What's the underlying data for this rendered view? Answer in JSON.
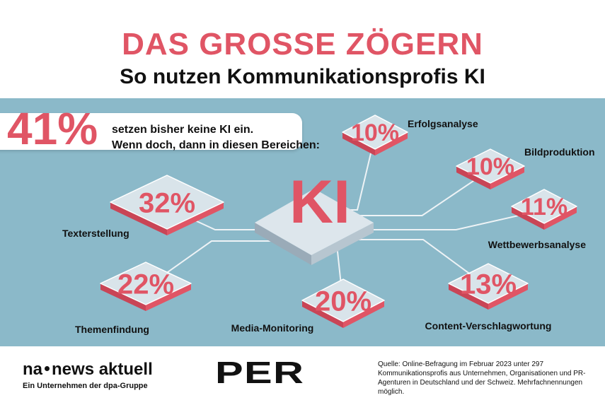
{
  "title": "DAS GROSSE ZÖGERN",
  "subtitle": "So nutzen Kommunikationsprofis KI",
  "headline": {
    "value": "41%",
    "line1": "setzen bisher keine KI ein.",
    "line2": "Wenn doch, dann in diesen Bereichen:"
  },
  "center_label": "KI",
  "colors": {
    "accent": "#e05565",
    "panel": "#8bb9c9",
    "tile": "#d9e4ea"
  },
  "chart_data": {
    "type": "infographic",
    "title": "DAS GROSSE ZÖGERN",
    "subtitle": "So nutzen Kommunikationsprofis KI",
    "categories": [
      "Erfolgsanalyse",
      "Bildproduktion",
      "Wettbewerbsanalyse",
      "Content-Verschlagwortung",
      "Media-Monitoring",
      "Themenfindung",
      "Texterstellung"
    ],
    "values": [
      10,
      10,
      11,
      13,
      20,
      22,
      32
    ],
    "labels": [
      "10%",
      "10%",
      "11%",
      "13%",
      "20%",
      "22%",
      "32%"
    ]
  },
  "footer": {
    "logo_left": "na",
    "logo_right": "news aktuell",
    "logo_sub": "Ein Unternehmen der dpa-Gruppe",
    "per": "PER",
    "source": "Quelle: Online-Befragung im Februar 2023 unter 297 Kommunikationsprofis aus Unternehmen, Organisationen und PR-Agenturen in Deutschland und der Schweiz. Mehrfachnennungen möglich."
  }
}
